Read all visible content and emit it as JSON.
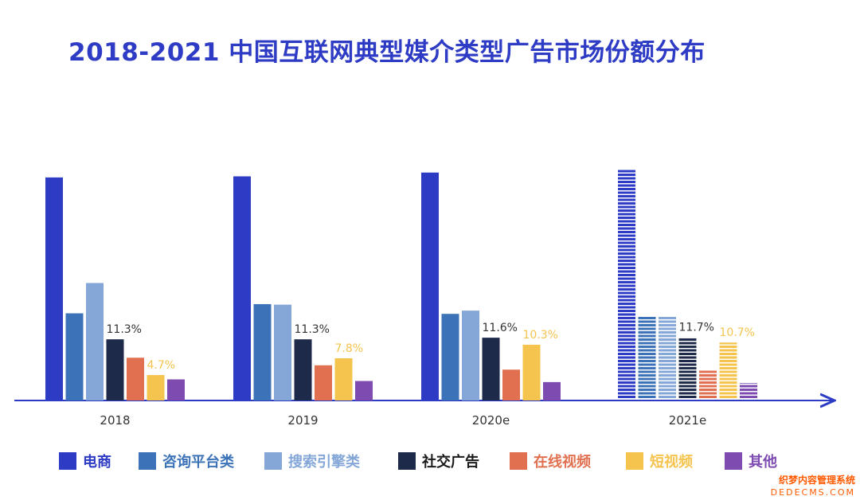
{
  "chart_data": {
    "type": "bar",
    "title": "2018-2021 中国互联网典型媒介类型广告市场份额分布",
    "categories": [
      "2018",
      "2019",
      "2020e",
      "2021e"
    ],
    "series": [
      {
        "name": "电商",
        "color": "#2E3BC4",
        "values": [
          41.2,
          41.4,
          42.1,
          42.6
        ]
      },
      {
        "name": "咨询平台类",
        "color": "#3C73B8",
        "values": [
          16.1,
          17.8,
          16.0,
          15.6
        ]
      },
      {
        "name": "搜索引擎类",
        "color": "#84A7D8",
        "values": [
          21.7,
          17.7,
          16.6,
          15.6
        ]
      },
      {
        "name": "社交广告",
        "color": "#1E2A4A",
        "values": [
          11.3,
          11.3,
          11.6,
          11.7
        ]
      },
      {
        "name": "在线视频",
        "color": "#E07050",
        "values": [
          7.9,
          6.5,
          5.7,
          5.7
        ]
      },
      {
        "name": "短视频",
        "color": "#F5C44E",
        "values": [
          4.7,
          7.8,
          10.3,
          10.7
        ]
      },
      {
        "name": "其他",
        "color": "#7E4CB0",
        "values": [
          3.9,
          3.6,
          3.4,
          3.2
        ]
      }
    ],
    "data_labels": [
      {
        "category": "2018",
        "series": "社交广告",
        "text": "11.3%"
      },
      {
        "category": "2018",
        "series": "短视频",
        "text": "4.7%"
      },
      {
        "category": "2019",
        "series": "社交广告",
        "text": "11.3%"
      },
      {
        "category": "2019",
        "series": "短视频",
        "text": "7.8%"
      },
      {
        "category": "2020e",
        "series": "社交广告",
        "text": "11.6%"
      },
      {
        "category": "2020e",
        "series": "短视频",
        "text": "10.3%"
      },
      {
        "category": "2021e",
        "series": "社交广告",
        "text": "11.7%"
      },
      {
        "category": "2021e",
        "series": "短视频",
        "text": "10.7%"
      }
    ],
    "striped_categories": [
      "2021e"
    ],
    "ylim": [
      0,
      45
    ],
    "xlabel": "",
    "ylabel": "",
    "grid": false,
    "legend_position": "bottom",
    "label_colors": {
      "社交广告": "#333333",
      "短视频": "#F5C44E"
    }
  },
  "watermark": {
    "line1": "织梦内容管理系统",
    "line2": "DEDECMS.COM"
  }
}
